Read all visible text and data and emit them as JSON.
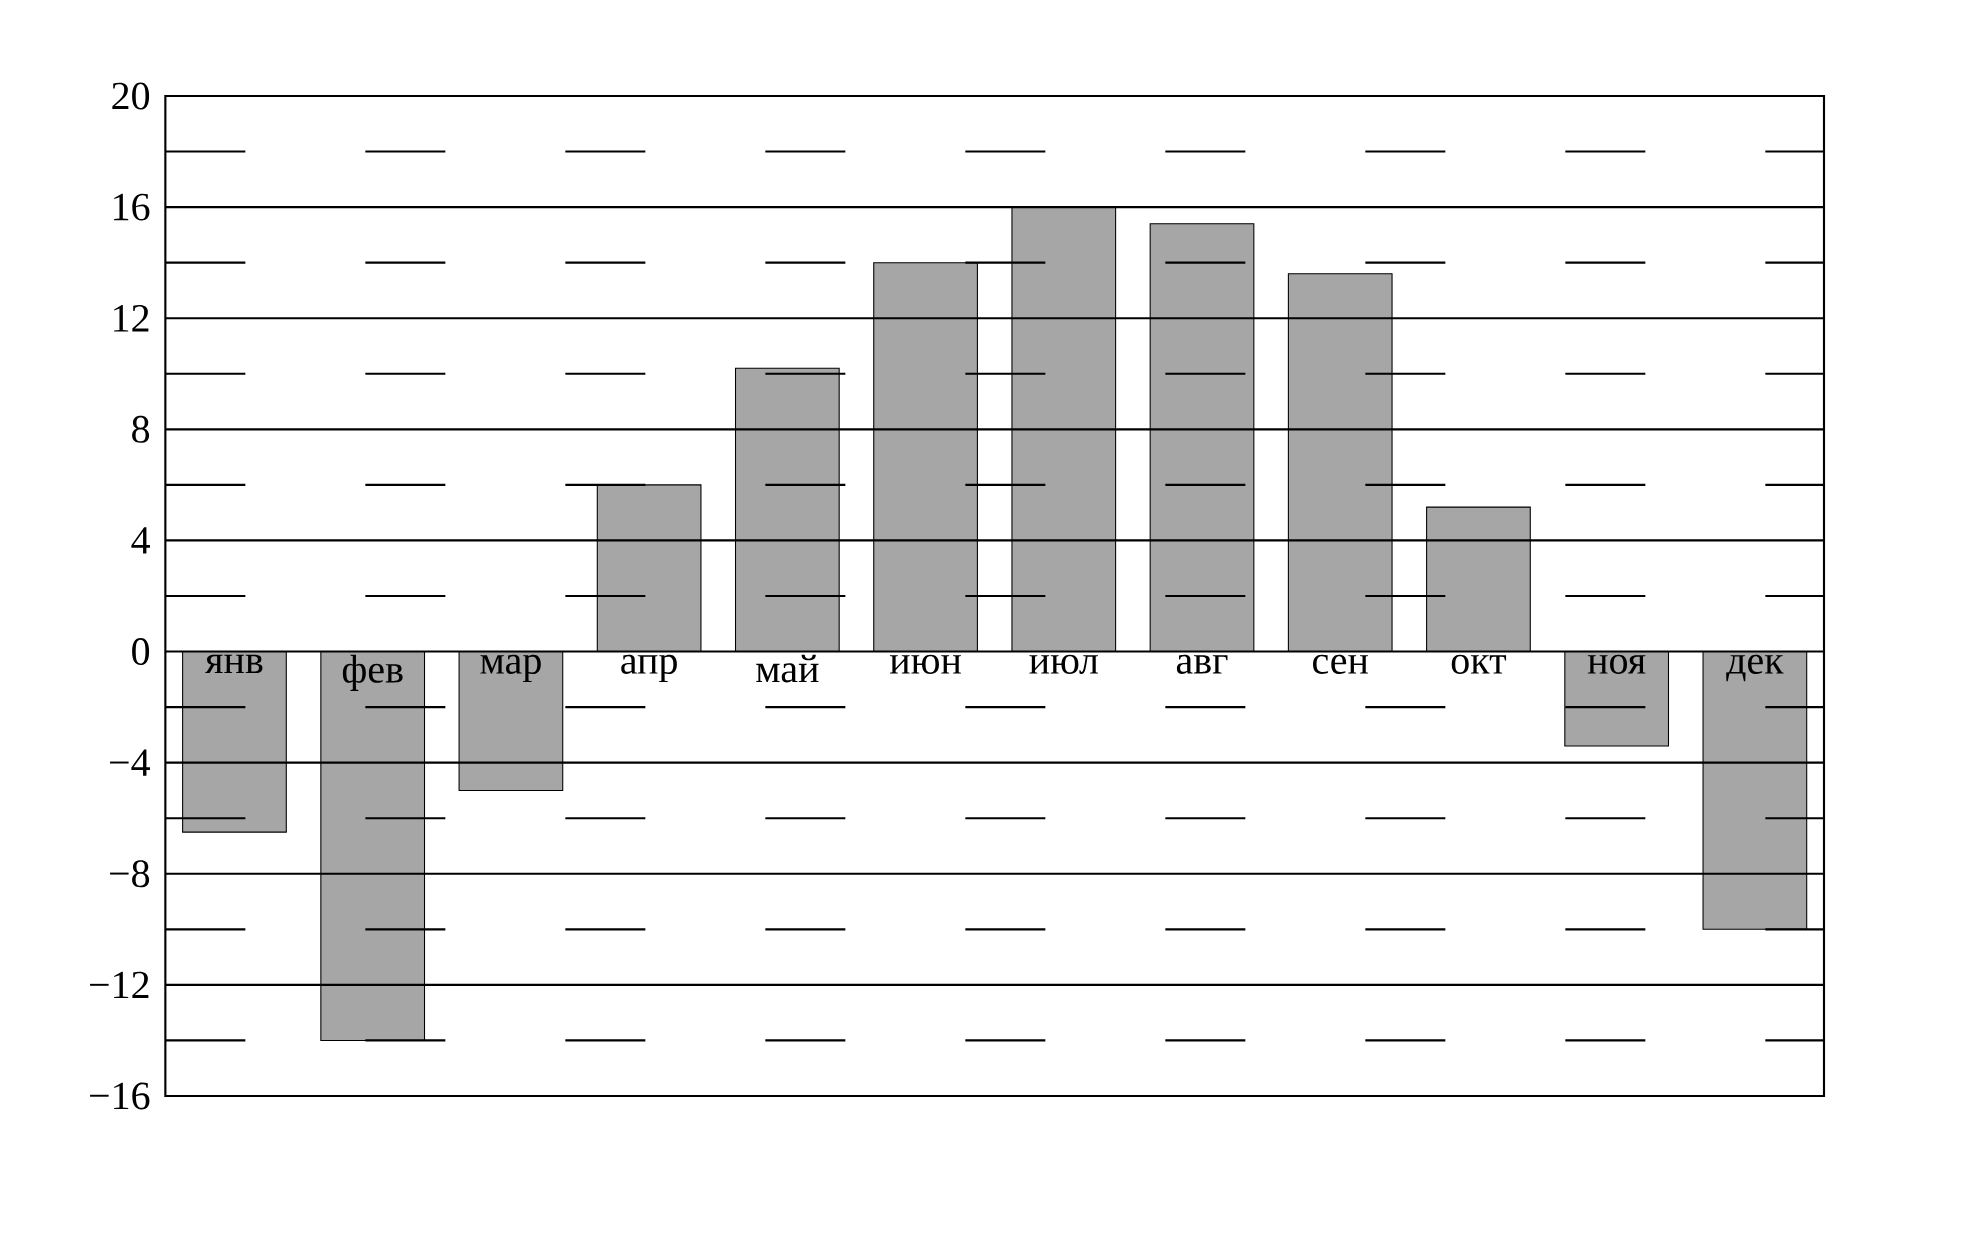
{
  "chart_data": {
    "type": "bar",
    "categories": [
      "янв",
      "фев",
      "мар",
      "апр",
      "май",
      "июн",
      "июл",
      "авг",
      "сен",
      "окт",
      "ноя",
      "дек"
    ],
    "values": [
      -6.5,
      -14,
      -5,
      6,
      10.2,
      14,
      16,
      15.4,
      13.6,
      5.2,
      -3.4,
      -10
    ],
    "color": "#a6a6a6",
    "ylim": [
      -16,
      20
    ],
    "yticks": [
      {
        "value": -16,
        "label": "−16"
      },
      {
        "value": -14,
        "label": null
      },
      {
        "value": -12,
        "label": "−12"
      },
      {
        "value": -10,
        "label": null
      },
      {
        "value": -8,
        "label": "−8"
      },
      {
        "value": -6,
        "label": null
      },
      {
        "value": -4,
        "label": "−4"
      },
      {
        "value": -2,
        "label": null
      },
      0,
      {
        "value": 2,
        "label": null
      },
      4,
      {
        "value": 6,
        "label": null
      },
      8,
      {
        "value": 10,
        "label": null
      },
      12,
      {
        "value": 14,
        "label": null
      },
      16,
      {
        "value": 18,
        "label": null
      },
      20
    ],
    "grid": "y"
  }
}
